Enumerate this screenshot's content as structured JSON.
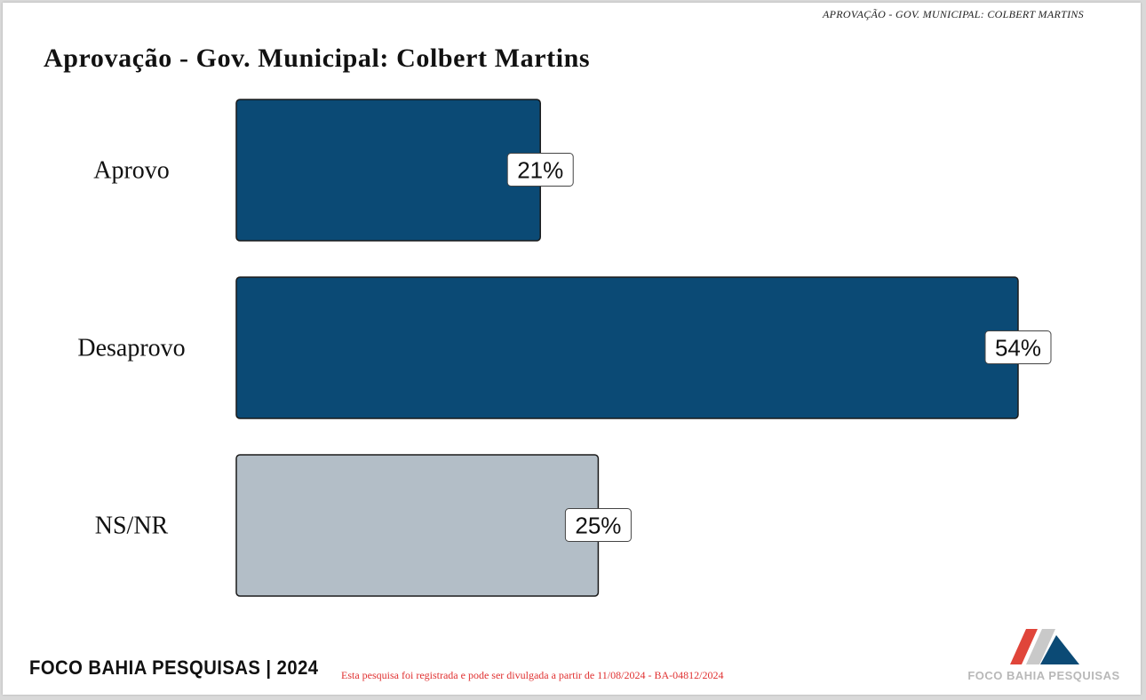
{
  "header": {
    "running_title": "APROVAÇÃO - GOV. MUNICIPAL: COLBERT MARTINS"
  },
  "footer": {
    "brand": "FOCO BAHIA PESQUISAS | 2024",
    "note": "Esta pesquisa foi registrada e pode ser divulgada a partir de 11/08/2024 - BA-04812/2024",
    "logo_text": "FOCO BAHIA PESQUISAS"
  },
  "colors": {
    "bar_primary": "#0b4a75",
    "bar_secondary": "#b3bec7",
    "note_red": "#e03030",
    "logo_red": "#e0453a",
    "logo_navy": "#0b4a75",
    "logo_grey": "#c9c9c9"
  },
  "chart_data": {
    "type": "bar",
    "orientation": "horizontal",
    "title": "Aprovação - Gov. Municipal: Colbert Martins",
    "categories": [
      "Aprovo",
      "Desaprovo",
      "NS/NR"
    ],
    "values": [
      21,
      54,
      25
    ],
    "value_labels": [
      "21%",
      "54%",
      "25%"
    ],
    "bar_colors": [
      "#0b4a75",
      "#0b4a75",
      "#b3bec7"
    ],
    "xlim": [
      0,
      54
    ],
    "grid": false,
    "legend": "none"
  }
}
